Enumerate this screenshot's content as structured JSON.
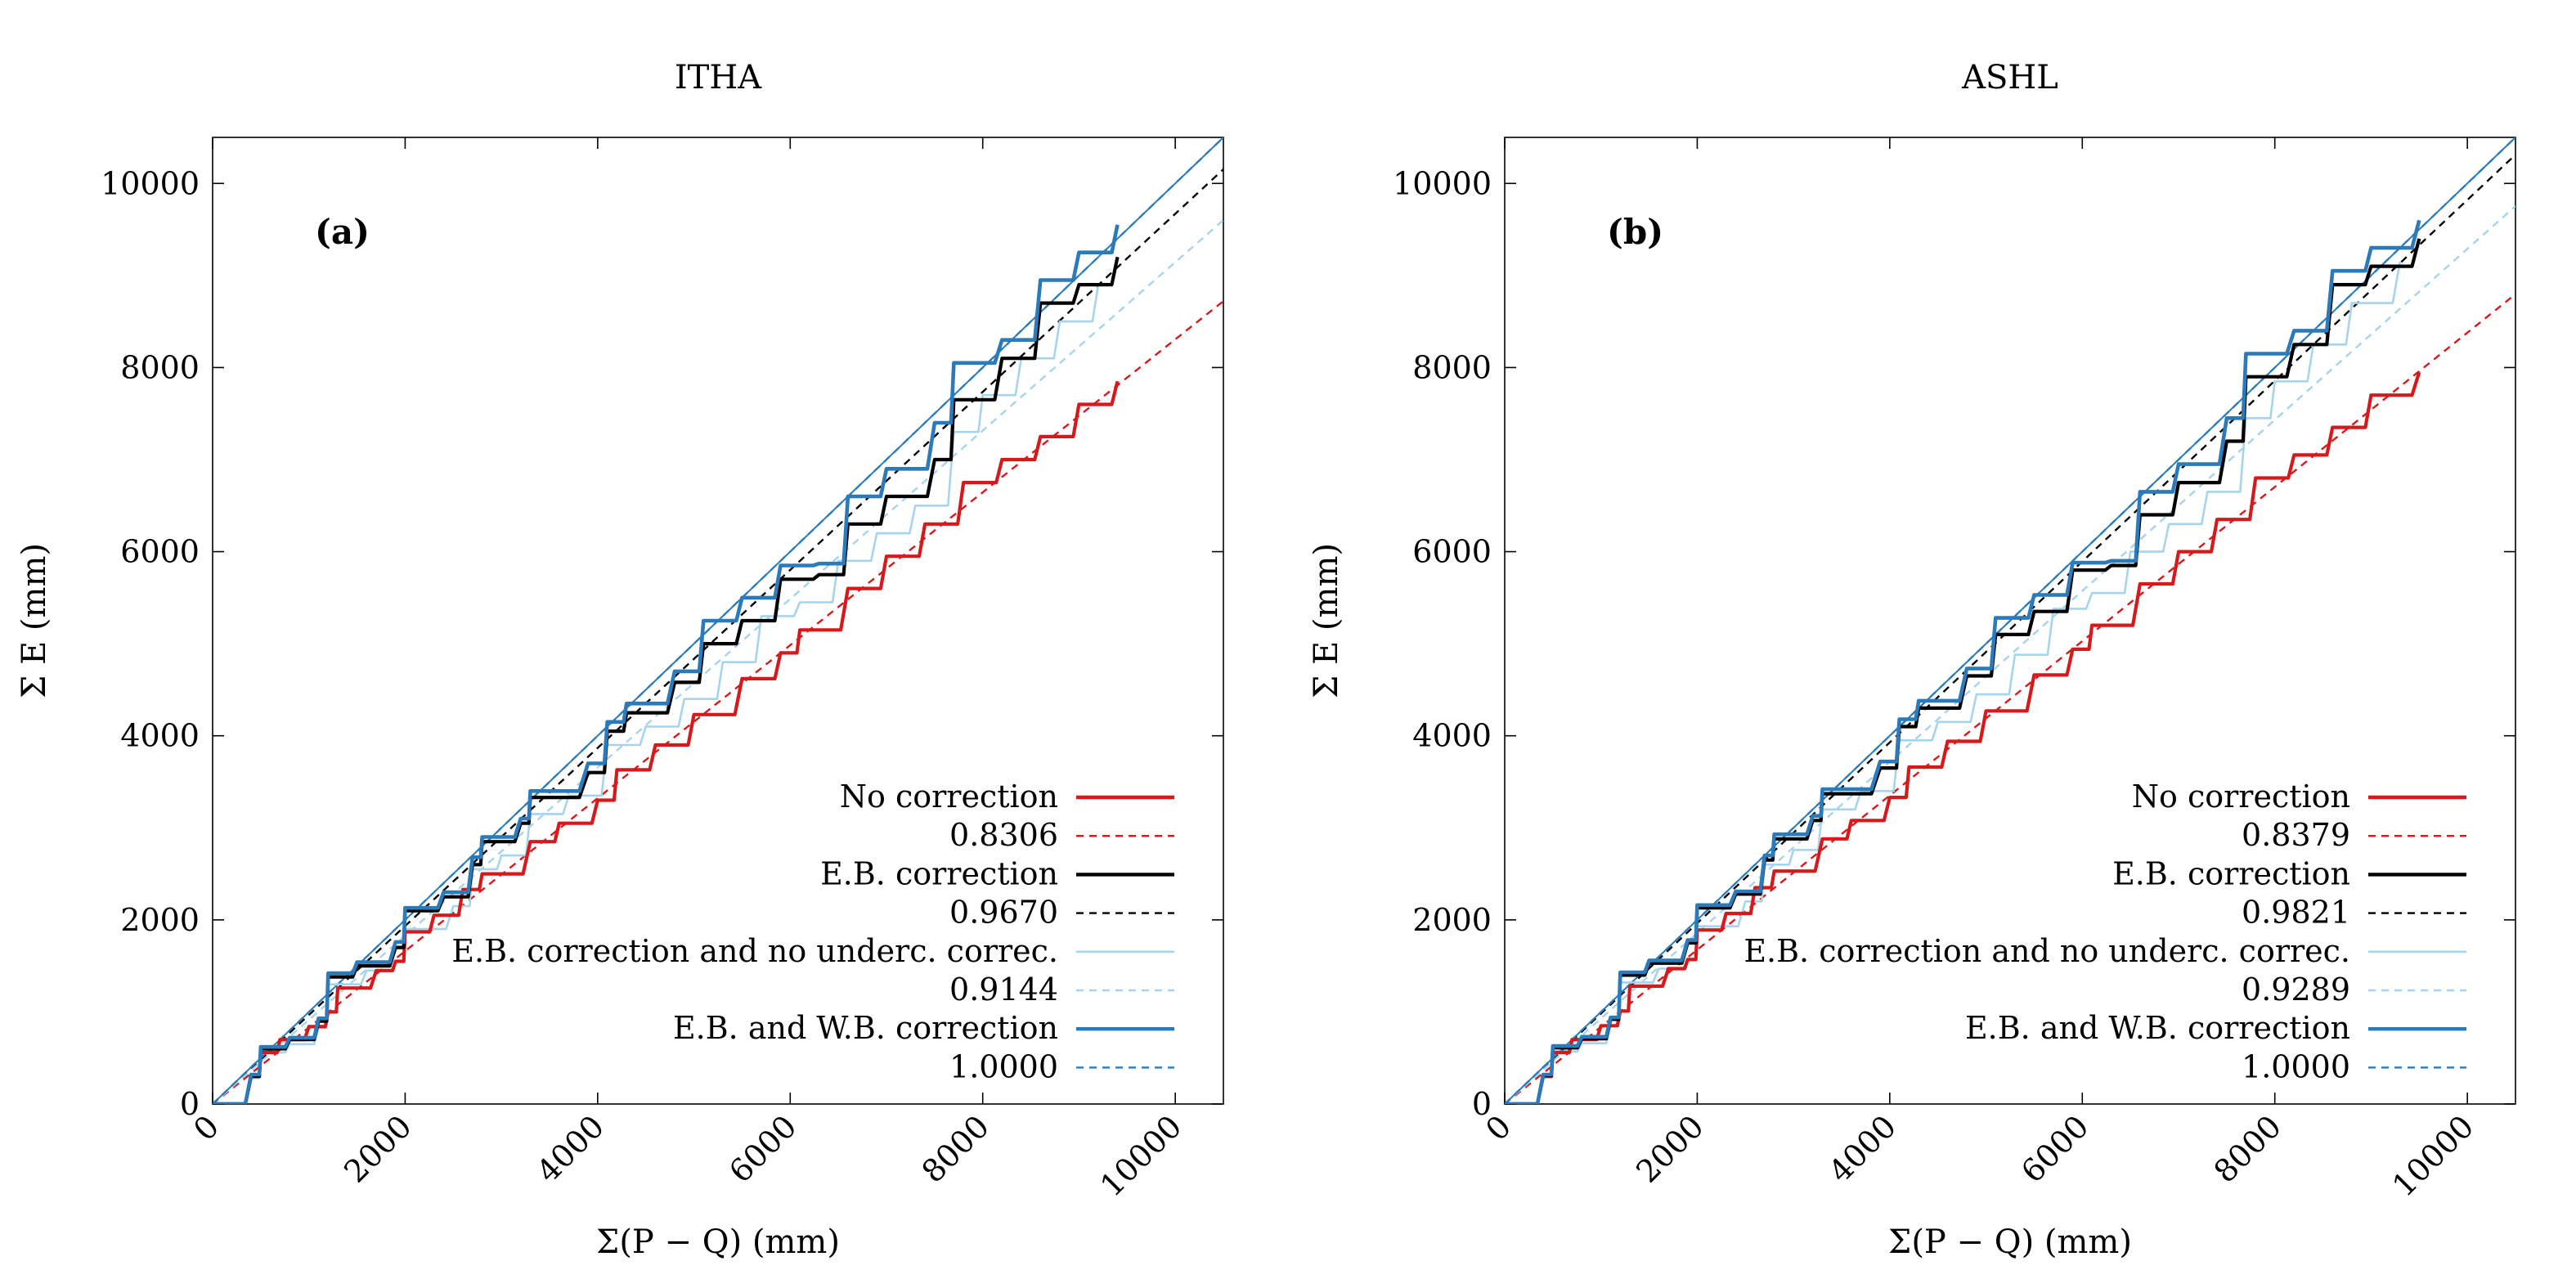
{
  "chart_data": [
    {
      "type": "line",
      "title": "ITHA",
      "panel_label": "(a)",
      "xlabel": "Σ(P − Q) (mm)",
      "ylabel": "Σ E (mm)",
      "xlim": [
        0,
        10500
      ],
      "ylim": [
        0,
        10500
      ],
      "x_ticks": [
        0,
        2000,
        4000,
        6000,
        8000,
        10000
      ],
      "y_ticks": [
        0,
        2000,
        4000,
        6000,
        8000,
        10000
      ],
      "grid": false,
      "legend_position": "bottom-right",
      "reference_line": {
        "slope": 1.0,
        "color": "#2b7bba"
      },
      "series": [
        {
          "name": "No correction",
          "color": "#d7191c",
          "style": "solid",
          "x": [
            0,
            400,
            500,
            700,
            1000,
            1200,
            1300,
            1700,
            1900,
            2000,
            2300,
            2600,
            2800,
            3300,
            3600,
            4000,
            4200,
            4600,
            5000,
            5500,
            5900,
            6100,
            6600,
            7000,
            7400,
            7800,
            8200,
            8600,
            9000,
            9400
          ],
          "y": [
            0,
            300,
            560,
            700,
            840,
            1000,
            1260,
            1450,
            1550,
            1870,
            2050,
            2330,
            2500,
            2850,
            3050,
            3300,
            3630,
            3900,
            4230,
            4620,
            4900,
            5150,
            5600,
            5950,
            6300,
            6750,
            7000,
            7250,
            7600,
            7850
          ]
        },
        {
          "name": "0.8306",
          "color": "#d7191c",
          "style": "dashed",
          "slope": 0.8306
        },
        {
          "name": "E.B. correction",
          "color": "#000000",
          "style": "solid",
          "x": [
            0,
            400,
            500,
            800,
            1100,
            1200,
            1500,
            1900,
            2000,
            2400,
            2700,
            2800,
            3200,
            3300,
            3900,
            4100,
            4300,
            4800,
            5100,
            5500,
            5900,
            6300,
            6600,
            7000,
            7500,
            7700,
            8200,
            8600,
            9000,
            9400
          ],
          "y": [
            0,
            300,
            600,
            700,
            900,
            1380,
            1500,
            1700,
            2100,
            2250,
            2600,
            2850,
            3050,
            3330,
            3600,
            4050,
            4250,
            4580,
            5000,
            5250,
            5700,
            5750,
            6300,
            6600,
            7000,
            7650,
            8100,
            8700,
            8900,
            9200
          ]
        },
        {
          "name": "0.9670",
          "color": "#000000",
          "style": "dashed",
          "slope": 0.967
        },
        {
          "name": "E.B. correction and no underc. correc.",
          "color": "#a6d4ec",
          "style": "solid",
          "x": [
            0,
            400,
            500,
            800,
            1100,
            1200,
            1600,
            1900,
            2000,
            2500,
            2700,
            3000,
            3300,
            3700,
            4100,
            4500,
            4900,
            5300,
            5700,
            6100,
            6500,
            6900,
            7300,
            7700,
            8000,
            8400,
            8800,
            9200
          ],
          "y": [
            0,
            280,
            560,
            650,
            830,
            1300,
            1450,
            1550,
            1900,
            2150,
            2550,
            2700,
            3150,
            3350,
            3900,
            4100,
            4400,
            4800,
            5300,
            5450,
            5900,
            6200,
            6500,
            7300,
            7700,
            8100,
            8500,
            8900
          ]
        },
        {
          "name": "0.9144",
          "color": "#a6d4ec",
          "style": "dashed",
          "slope": 0.9144
        },
        {
          "name": "E.B. and W.B. correction",
          "color": "#2b7bba",
          "style": "solid",
          "x": [
            0,
            400,
            500,
            800,
            1100,
            1200,
            1500,
            1900,
            2000,
            2400,
            2700,
            2800,
            3200,
            3300,
            3900,
            4100,
            4300,
            4800,
            5100,
            5500,
            5900,
            6300,
            6600,
            7000,
            7500,
            7700,
            8200,
            8600,
            9000,
            9400
          ],
          "y": [
            0,
            320,
            620,
            720,
            930,
            1420,
            1540,
            1760,
            2130,
            2300,
            2680,
            2900,
            3100,
            3400,
            3700,
            4150,
            4350,
            4700,
            5250,
            5500,
            5850,
            5870,
            6600,
            6900,
            7400,
            8050,
            8300,
            8950,
            9250,
            9550
          ]
        },
        {
          "name": "1.0000",
          "color": "#2b7bba",
          "style": "dashed",
          "slope": 1.0
        }
      ]
    },
    {
      "type": "line",
      "title": "ASHL",
      "panel_label": "(b)",
      "xlabel": "Σ(P − Q) (mm)",
      "ylabel": "Σ E (mm)",
      "xlim": [
        0,
        10500
      ],
      "ylim": [
        0,
        10500
      ],
      "x_ticks": [
        0,
        2000,
        4000,
        6000,
        8000,
        10000
      ],
      "y_ticks": [
        0,
        2000,
        4000,
        6000,
        8000,
        10000
      ],
      "grid": false,
      "legend_position": "bottom-right",
      "reference_line": {
        "slope": 1.0,
        "color": "#2b7bba"
      },
      "series": [
        {
          "name": "No correction",
          "color": "#d7191c",
          "style": "solid",
          "x": [
            0,
            400,
            500,
            700,
            1000,
            1200,
            1300,
            1700,
            1900,
            2000,
            2300,
            2600,
            2800,
            3300,
            3600,
            4000,
            4200,
            4600,
            5000,
            5500,
            5900,
            6100,
            6600,
            7000,
            7400,
            7800,
            8200,
            8600,
            9000,
            9500
          ],
          "y": [
            0,
            300,
            560,
            700,
            850,
            1010,
            1280,
            1470,
            1570,
            1890,
            2070,
            2350,
            2530,
            2880,
            3080,
            3330,
            3660,
            3940,
            4270,
            4660,
            4940,
            5200,
            5650,
            6000,
            6350,
            6800,
            7050,
            7350,
            7700,
            7950
          ]
        },
        {
          "name": "0.8379",
          "color": "#d7191c",
          "style": "dashed",
          "slope": 0.8379
        },
        {
          "name": "E.B. correction",
          "color": "#000000",
          "style": "solid",
          "x": [
            0,
            400,
            500,
            800,
            1100,
            1200,
            1500,
            1900,
            2000,
            2400,
            2700,
            2800,
            3200,
            3300,
            3900,
            4100,
            4300,
            4800,
            5100,
            5500,
            5900,
            6300,
            6600,
            7000,
            7500,
            7700,
            8200,
            8600,
            9000,
            9500
          ],
          "y": [
            0,
            310,
            610,
            710,
            920,
            1400,
            1530,
            1750,
            2130,
            2280,
            2650,
            2880,
            3080,
            3370,
            3650,
            4100,
            4300,
            4650,
            5100,
            5350,
            5800,
            5850,
            6400,
            6750,
            7200,
            7900,
            8250,
            8900,
            9100,
            9400
          ]
        },
        {
          "name": "0.9821",
          "color": "#000000",
          "style": "dashed",
          "slope": 0.9821
        },
        {
          "name": "E.B. correction and no underc. correc.",
          "color": "#a6d4ec",
          "style": "solid",
          "x": [
            0,
            400,
            500,
            800,
            1100,
            1200,
            1600,
            1900,
            2000,
            2500,
            2700,
            3000,
            3300,
            3700,
            4100,
            4500,
            4900,
            5300,
            5700,
            6100,
            6500,
            6900,
            7300,
            7700,
            8000,
            8400,
            8800,
            9300
          ],
          "y": [
            0,
            290,
            570,
            660,
            850,
            1320,
            1470,
            1580,
            1930,
            2200,
            2600,
            2760,
            3200,
            3400,
            3950,
            4150,
            4450,
            4880,
            5380,
            5550,
            6000,
            6300,
            6650,
            7450,
            7850,
            8250,
            8700,
            9150
          ]
        },
        {
          "name": "0.9289",
          "color": "#a6d4ec",
          "style": "dashed",
          "slope": 0.9289
        },
        {
          "name": "E.B. and W.B. correction",
          "color": "#2b7bba",
          "style": "solid",
          "x": [
            0,
            400,
            500,
            800,
            1100,
            1200,
            1500,
            1900,
            2000,
            2400,
            2700,
            2800,
            3200,
            3300,
            3900,
            4100,
            4300,
            4800,
            5100,
            5500,
            5900,
            6300,
            6600,
            7000,
            7500,
            7700,
            8200,
            8600,
            9000,
            9500
          ],
          "y": [
            0,
            320,
            630,
            730,
            940,
            1430,
            1560,
            1780,
            2160,
            2310,
            2700,
            2930,
            3130,
            3420,
            3720,
            4180,
            4380,
            4730,
            5280,
            5530,
            5880,
            5900,
            6650,
            6950,
            7450,
            8150,
            8400,
            9050,
            9300,
            9600
          ]
        },
        {
          "name": "1.0000",
          "color": "#2b7bba",
          "style": "dashed",
          "slope": 1.0
        }
      ]
    }
  ]
}
